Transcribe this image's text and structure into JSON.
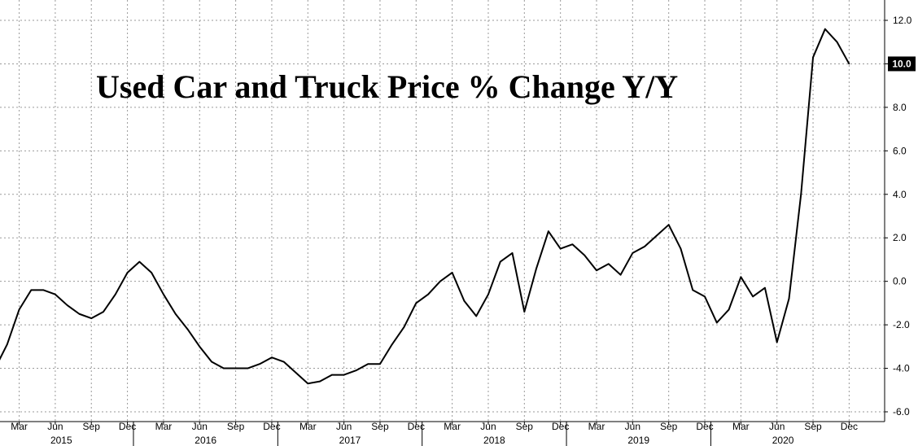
{
  "chart_data": {
    "type": "line",
    "title": "Used Car and Truck Price % Change Y/Y",
    "xlabel": "",
    "ylabel": "",
    "ylim": [
      -6,
      12
    ],
    "y_ticks": [
      "12.0",
      "10.0",
      "8.0",
      "6.0",
      "4.0",
      "2.0",
      "0.0",
      "-2.0",
      "-4.0",
      "-6.0"
    ],
    "y_tick_values": [
      12,
      10,
      8,
      6,
      4,
      2,
      0,
      -2,
      -4,
      -6
    ],
    "x_month_labels": [
      "Mar",
      "Jun",
      "Sep",
      "Dec",
      "Mar",
      "Jun",
      "Sep",
      "Dec",
      "Mar",
      "Jun",
      "Sep",
      "Dec",
      "Mar",
      "Jun",
      "Sep",
      "Dec",
      "Mar",
      "Jun",
      "Sep",
      "Dec",
      "Mar",
      "Jun",
      "Sep",
      "Dec"
    ],
    "x_year_labels": [
      "2015",
      "2016",
      "2017",
      "2018",
      "2019",
      "2020"
    ],
    "x_range": [
      "2015-01",
      "2020-12"
    ],
    "grid": true,
    "axis_side": "right",
    "last_value_label": "10.0",
    "series": [
      {
        "x": [
          "2015-01",
          "2015-02",
          "2015-03",
          "2015-04",
          "2015-05",
          "2015-06",
          "2015-07",
          "2015-08",
          "2015-09",
          "2015-10",
          "2015-11",
          "2015-12",
          "2016-01",
          "2016-02",
          "2016-03",
          "2016-04",
          "2016-05",
          "2016-06",
          "2016-07",
          "2016-08",
          "2016-09",
          "2016-10",
          "2016-11",
          "2016-12",
          "2017-01",
          "2017-02",
          "2017-03",
          "2017-04",
          "2017-05",
          "2017-06",
          "2017-07",
          "2017-08",
          "2017-09",
          "2017-10",
          "2017-11",
          "2017-12",
          "2018-01",
          "2018-02",
          "2018-03",
          "2018-04",
          "2018-05",
          "2018-06",
          "2018-07",
          "2018-08",
          "2018-09",
          "2018-10",
          "2018-11",
          "2018-12",
          "2019-01",
          "2019-02",
          "2019-03",
          "2019-04",
          "2019-05",
          "2019-06",
          "2019-07",
          "2019-08",
          "2019-09",
          "2019-10",
          "2019-11",
          "2019-12",
          "2020-01",
          "2020-02",
          "2020-03",
          "2020-04",
          "2020-05",
          "2020-06",
          "2020-07",
          "2020-08",
          "2020-09",
          "2020-10",
          "2020-11",
          "2020-12"
        ],
        "values": [
          -4.0,
          -2.9,
          -1.3,
          -0.4,
          -0.4,
          -0.6,
          -1.1,
          -1.5,
          -1.7,
          -1.4,
          -0.6,
          0.4,
          0.9,
          0.4,
          -0.6,
          -1.5,
          -2.2,
          -3.0,
          -3.7,
          -4.0,
          -4.0,
          -4.0,
          -3.8,
          -3.5,
          -3.7,
          -4.2,
          -4.7,
          -4.6,
          -4.3,
          -4.3,
          -4.1,
          -3.8,
          -3.8,
          -2.9,
          -2.1,
          -1.0,
          -0.6,
          0.0,
          0.4,
          -0.9,
          -1.6,
          -0.6,
          0.9,
          1.3,
          -1.4,
          0.6,
          2.3,
          1.5,
          1.7,
          1.2,
          0.5,
          0.8,
          0.3,
          1.3,
          1.6,
          2.1,
          2.6,
          1.5,
          -0.4,
          -0.7,
          -1.9,
          -1.3,
          0.2,
          -0.7,
          -0.3,
          -2.8,
          -0.8,
          4.0,
          10.3,
          11.6,
          11.0,
          10.0
        ]
      }
    ]
  }
}
